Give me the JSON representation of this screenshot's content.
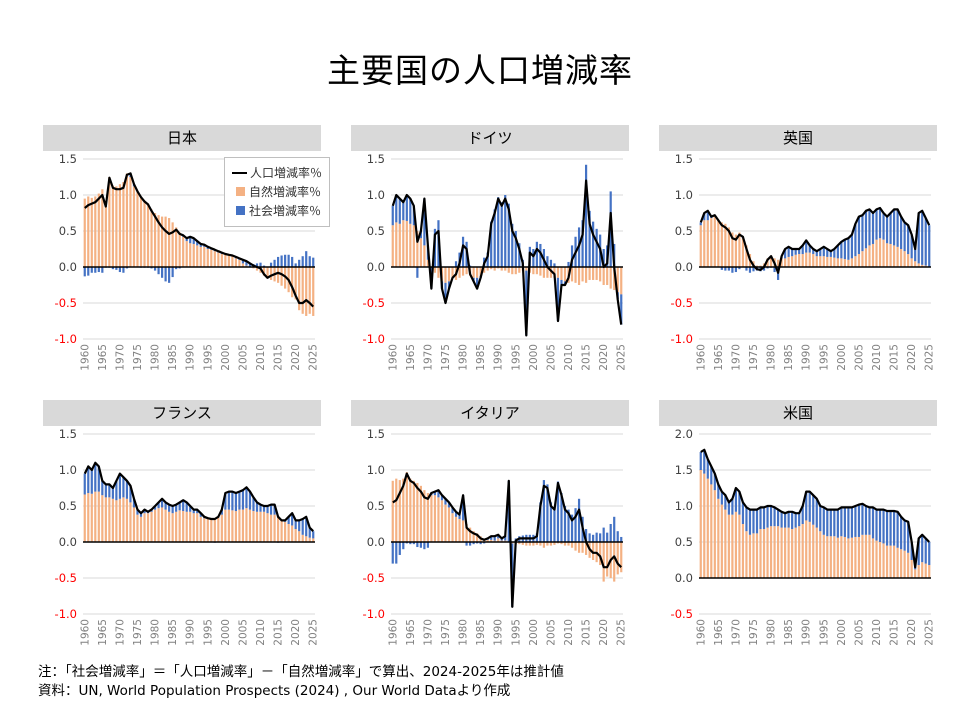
{
  "page": {
    "title": "主要国の人口増減率"
  },
  "legend": {
    "line_label": "人口増減率％",
    "line_prefix": "一",
    "natural_label": "自然増減率％",
    "social_label": "社会増減率％"
  },
  "notes": {
    "line1": "注：「社会増減率」＝「人口増減率」－「自然増減率」で算出、2024-2025年は推計値",
    "line2": "資料：UN, World Population Prospects (2024) , Our World Dataより作成"
  },
  "colors": {
    "natural_bar": "#F4B183",
    "social_bar": "#4472C4",
    "total_line": "#000000",
    "grid": "#D9D9D9",
    "zero_axis": "#000000",
    "header_bg": "#D9D9D9",
    "y_label": "#404040",
    "y_label_negative": "#FF0000",
    "x_label": "#808080"
  },
  "chart_data": [
    {
      "country": "日本",
      "type": "bar",
      "subtype": "stacked-bars-plus-line",
      "x_start": 1960,
      "x_end": 2025,
      "x_tick_step": 5,
      "x_ticks": [
        1960,
        1965,
        1970,
        1975,
        1980,
        1985,
        1990,
        1995,
        2000,
        2005,
        2010,
        2015,
        2020,
        2025
      ],
      "ylim": [
        -1.0,
        1.5
      ],
      "y_ticks": [
        1.5,
        1.0,
        0.5,
        0.0,
        -0.5,
        -1.0
      ],
      "social_definition": "人口増減率−自然増減率で算出",
      "natural": [
        0.95,
        0.98,
        0.96,
        0.98,
        1.02,
        1.08,
        0.85,
        1.25,
        1.13,
        1.12,
        1.15,
        1.18,
        1.3,
        1.25,
        1.12,
        1.05,
        0.98,
        0.92,
        0.88,
        0.8,
        0.75,
        0.72,
        0.7,
        0.7,
        0.68,
        0.62,
        0.55,
        0.48,
        0.42,
        0.36,
        0.33,
        0.32,
        0.3,
        0.28,
        0.28,
        0.25,
        0.24,
        0.22,
        0.2,
        0.18,
        0.18,
        0.16,
        0.15,
        0.12,
        0.1,
        0.05,
        0.02,
        0.0,
        -0.02,
        -0.05,
        -0.08,
        -0.12,
        -0.15,
        -0.18,
        -0.2,
        -0.22,
        -0.26,
        -0.3,
        -0.35,
        -0.42,
        -0.45,
        -0.6,
        -0.65,
        -0.68,
        -0.65,
        -0.68
      ],
      "total": [
        0.82,
        0.86,
        0.88,
        0.9,
        0.95,
        1.0,
        0.84,
        1.24,
        1.1,
        1.08,
        1.08,
        1.1,
        1.28,
        1.3,
        1.15,
        1.05,
        0.97,
        0.91,
        0.87,
        0.78,
        0.7,
        0.62,
        0.55,
        0.5,
        0.46,
        0.48,
        0.52,
        0.46,
        0.44,
        0.4,
        0.42,
        0.4,
        0.36,
        0.32,
        0.31,
        0.28,
        0.26,
        0.24,
        0.22,
        0.2,
        0.18,
        0.17,
        0.16,
        0.14,
        0.12,
        0.1,
        0.08,
        0.05,
        0.02,
        0.0,
        -0.02,
        -0.1,
        -0.15,
        -0.12,
        -0.1,
        -0.08,
        -0.1,
        -0.13,
        -0.18,
        -0.28,
        -0.4,
        -0.5,
        -0.5,
        -0.46,
        -0.5,
        -0.55
      ]
    },
    {
      "country": "ドイツ",
      "type": "bar",
      "subtype": "stacked-bars-plus-line",
      "x_start": 1960,
      "x_end": 2025,
      "x_tick_step": 5,
      "x_ticks": [
        1960,
        1965,
        1970,
        1975,
        1980,
        1985,
        1990,
        1995,
        2000,
        2005,
        2010,
        2015,
        2020,
        2025
      ],
      "ylim": [
        -1.0,
        1.5
      ],
      "y_ticks": [
        1.5,
        1.0,
        0.5,
        0.0,
        -0.5,
        -1.0
      ],
      "social_definition": "人口増減率−自然増減率で算出",
      "natural": [
        0.58,
        0.62,
        0.6,
        0.65,
        0.64,
        0.6,
        0.58,
        0.5,
        0.4,
        0.3,
        0.1,
        0.0,
        -0.08,
        -0.15,
        -0.2,
        -0.22,
        -0.2,
        -0.15,
        -0.18,
        -0.15,
        -0.12,
        -0.1,
        -0.12,
        -0.15,
        -0.15,
        -0.12,
        -0.08,
        -0.05,
        -0.03,
        -0.05,
        -0.02,
        -0.05,
        -0.05,
        -0.08,
        -0.1,
        -0.1,
        -0.08,
        -0.05,
        -0.05,
        -0.08,
        -0.1,
        -0.1,
        -0.12,
        -0.15,
        -0.15,
        -0.15,
        -0.15,
        -0.15,
        -0.18,
        -0.2,
        -0.22,
        -0.2,
        -0.22,
        -0.25,
        -0.2,
        -0.22,
        -0.18,
        -0.18,
        -0.18,
        -0.2,
        -0.25,
        -0.25,
        -0.3,
        -0.32,
        -0.35,
        -0.38
      ],
      "total": [
        0.85,
        1.0,
        0.95,
        0.9,
        1.0,
        0.95,
        0.85,
        0.35,
        0.5,
        0.95,
        0.3,
        -0.3,
        0.45,
        0.5,
        -0.3,
        -0.5,
        -0.3,
        -0.15,
        -0.1,
        0.05,
        0.3,
        0.25,
        -0.1,
        -0.2,
        -0.3,
        -0.15,
        0.05,
        0.15,
        0.6,
        0.75,
        0.95,
        0.85,
        0.95,
        0.8,
        0.5,
        0.4,
        0.25,
        0.05,
        -0.95,
        0.2,
        0.15,
        0.25,
        0.2,
        0.1,
        0.0,
        -0.05,
        -0.1,
        -0.75,
        -0.25,
        -0.25,
        -0.15,
        0.1,
        0.2,
        0.3,
        0.45,
        1.2,
        0.6,
        0.45,
        0.35,
        0.25,
        0.0,
        0.05,
        0.75,
        0.0,
        -0.45,
        -0.8
      ]
    },
    {
      "country": "英国",
      "type": "bar",
      "subtype": "stacked-bars-plus-line",
      "x_start": 1960,
      "x_end": 2025,
      "x_tick_step": 5,
      "x_ticks": [
        1960,
        1965,
        1970,
        1975,
        1980,
        1985,
        1990,
        1995,
        2000,
        2005,
        2010,
        2015,
        2020,
        2025
      ],
      "ylim": [
        -1.0,
        1.5
      ],
      "y_ticks": [
        1.5,
        1.0,
        0.5,
        0.0,
        -0.5,
        -1.0
      ],
      "social_definition": "人口増減率−自然増減率で算出",
      "natural": [
        0.58,
        0.65,
        0.65,
        0.68,
        0.7,
        0.65,
        0.62,
        0.6,
        0.55,
        0.48,
        0.45,
        0.48,
        0.4,
        0.3,
        0.18,
        0.08,
        0.02,
        0.02,
        0.05,
        0.12,
        0.16,
        0.12,
        0.1,
        0.12,
        0.12,
        0.14,
        0.15,
        0.17,
        0.18,
        0.18,
        0.2,
        0.2,
        0.18,
        0.15,
        0.15,
        0.15,
        0.14,
        0.14,
        0.13,
        0.12,
        0.12,
        0.11,
        0.1,
        0.12,
        0.15,
        0.18,
        0.22,
        0.26,
        0.3,
        0.32,
        0.38,
        0.4,
        0.38,
        0.33,
        0.32,
        0.3,
        0.28,
        0.25,
        0.22,
        0.18,
        0.12,
        0.08,
        0.05,
        0.03,
        0.02,
        0.0
      ],
      "total": [
        0.62,
        0.75,
        0.78,
        0.7,
        0.72,
        0.65,
        0.58,
        0.55,
        0.5,
        0.4,
        0.38,
        0.45,
        0.42,
        0.25,
        0.1,
        0.02,
        -0.03,
        -0.04,
        0.0,
        0.1,
        0.15,
        0.05,
        -0.08,
        0.15,
        0.25,
        0.28,
        0.25,
        0.25,
        0.25,
        0.3,
        0.37,
        0.3,
        0.25,
        0.22,
        0.25,
        0.28,
        0.25,
        0.22,
        0.25,
        0.3,
        0.35,
        0.38,
        0.4,
        0.45,
        0.6,
        0.7,
        0.72,
        0.78,
        0.8,
        0.75,
        0.8,
        0.82,
        0.75,
        0.7,
        0.75,
        0.8,
        0.8,
        0.7,
        0.62,
        0.58,
        0.45,
        0.25,
        0.75,
        0.78,
        0.68,
        0.58
      ]
    },
    {
      "country": "フランス",
      "type": "bar",
      "subtype": "stacked-bars-plus-line",
      "x_start": 1960,
      "x_end": 2025,
      "x_tick_step": 5,
      "x_ticks": [
        1960,
        1965,
        1970,
        1975,
        1980,
        1985,
        1990,
        1995,
        2000,
        2005,
        2010,
        2015,
        2020,
        2025
      ],
      "ylim": [
        -1.0,
        1.5
      ],
      "y_ticks": [
        1.5,
        1.0,
        0.5,
        0.0,
        -0.5,
        -1.0
      ],
      "social_definition": "人口増減率−自然増減率で算出",
      "natural": [
        0.66,
        0.68,
        0.67,
        0.7,
        0.7,
        0.65,
        0.62,
        0.62,
        0.6,
        0.58,
        0.6,
        0.62,
        0.6,
        0.55,
        0.48,
        0.38,
        0.35,
        0.4,
        0.4,
        0.42,
        0.45,
        0.47,
        0.48,
        0.45,
        0.42,
        0.4,
        0.42,
        0.44,
        0.43,
        0.42,
        0.42,
        0.4,
        0.4,
        0.35,
        0.33,
        0.32,
        0.32,
        0.33,
        0.34,
        0.38,
        0.45,
        0.45,
        0.44,
        0.43,
        0.45,
        0.45,
        0.47,
        0.45,
        0.43,
        0.42,
        0.42,
        0.42,
        0.4,
        0.38,
        0.38,
        0.36,
        0.3,
        0.28,
        0.25,
        0.23,
        0.18,
        0.15,
        0.1,
        0.08,
        0.06,
        0.05
      ],
      "total": [
        0.95,
        1.05,
        1.0,
        1.1,
        1.05,
        0.85,
        0.8,
        0.8,
        0.75,
        0.85,
        0.95,
        0.9,
        0.85,
        0.78,
        0.6,
        0.45,
        0.4,
        0.45,
        0.42,
        0.45,
        0.5,
        0.55,
        0.6,
        0.55,
        0.52,
        0.5,
        0.52,
        0.55,
        0.58,
        0.55,
        0.5,
        0.45,
        0.45,
        0.4,
        0.35,
        0.33,
        0.32,
        0.32,
        0.35,
        0.45,
        0.68,
        0.7,
        0.7,
        0.68,
        0.7,
        0.72,
        0.76,
        0.7,
        0.62,
        0.55,
        0.52,
        0.5,
        0.5,
        0.52,
        0.52,
        0.35,
        0.3,
        0.3,
        0.35,
        0.4,
        0.3,
        0.3,
        0.32,
        0.35,
        0.2,
        0.15
      ]
    },
    {
      "country": "イタリア",
      "type": "bar",
      "subtype": "stacked-bars-plus-line",
      "x_start": 1960,
      "x_end": 2025,
      "x_tick_step": 5,
      "x_ticks": [
        1960,
        1965,
        1970,
        1975,
        1980,
        1985,
        1990,
        1995,
        2000,
        2005,
        2010,
        2015,
        2020,
        2025
      ],
      "ylim": [
        -1.0,
        1.5
      ],
      "y_ticks": [
        1.5,
        1.0,
        0.5,
        0.0,
        -0.5,
        -1.0
      ],
      "social_definition": "人口増減率−自然増減率で算出",
      "natural": [
        0.85,
        0.88,
        0.86,
        0.88,
        0.97,
        0.88,
        0.85,
        0.82,
        0.78,
        0.72,
        0.68,
        0.65,
        0.65,
        0.62,
        0.58,
        0.52,
        0.48,
        0.4,
        0.35,
        0.32,
        0.3,
        0.25,
        0.2,
        0.15,
        0.12,
        0.08,
        0.05,
        0.03,
        0.03,
        0.02,
        0.05,
        0.02,
        0.02,
        0.0,
        -0.02,
        -0.03,
        -0.03,
        -0.04,
        -0.05,
        -0.05,
        -0.05,
        -0.04,
        -0.05,
        -0.08,
        -0.05,
        -0.05,
        -0.04,
        -0.02,
        -0.03,
        -0.05,
        -0.05,
        -0.08,
        -0.12,
        -0.15,
        -0.15,
        -0.18,
        -0.22,
        -0.25,
        -0.28,
        -0.32,
        -0.55,
        -0.48,
        -0.5,
        -0.55,
        -0.45,
        -0.42
      ],
      "total": [
        0.55,
        0.58,
        0.68,
        0.78,
        0.95,
        0.85,
        0.82,
        0.75,
        0.7,
        0.62,
        0.6,
        0.68,
        0.7,
        0.72,
        0.65,
        0.6,
        0.55,
        0.48,
        0.42,
        0.38,
        0.65,
        0.2,
        0.15,
        0.12,
        0.1,
        0.05,
        0.03,
        0.05,
        0.08,
        0.08,
        0.1,
        0.05,
        0.08,
        0.85,
        -0.9,
        0.02,
        0.05,
        0.05,
        0.05,
        0.05,
        0.05,
        0.08,
        0.5,
        0.78,
        0.75,
        0.5,
        0.45,
        0.82,
        0.65,
        0.45,
        0.4,
        0.3,
        0.35,
        0.45,
        0.2,
        0.0,
        -0.1,
        -0.15,
        -0.15,
        -0.2,
        -0.35,
        -0.35,
        -0.25,
        -0.2,
        -0.3,
        -0.35
      ]
    },
    {
      "country": "米国",
      "type": "bar",
      "subtype": "stacked-bars-plus-line",
      "x_start": 1960,
      "x_end": 2025,
      "x_tick_step": 5,
      "x_ticks": [
        1960,
        1965,
        1970,
        1975,
        1980,
        1985,
        1990,
        1995,
        2000,
        2005,
        2010,
        2015,
        2020,
        2025
      ],
      "ylim": [
        -0.5,
        2.0
      ],
      "y_ticks": [
        2.0,
        1.5,
        1.0,
        0.5,
        0.0,
        -0.5
      ],
      "social_definition": "人口増減率−自然増減率で算出",
      "natural": [
        1.5,
        1.45,
        1.38,
        1.3,
        1.22,
        1.1,
        1.02,
        0.95,
        0.88,
        0.88,
        0.92,
        0.88,
        0.75,
        0.65,
        0.6,
        0.62,
        0.62,
        0.68,
        0.68,
        0.7,
        0.72,
        0.72,
        0.72,
        0.7,
        0.7,
        0.7,
        0.68,
        0.7,
        0.72,
        0.75,
        0.8,
        0.78,
        0.74,
        0.7,
        0.65,
        0.6,
        0.58,
        0.58,
        0.58,
        0.56,
        0.58,
        0.57,
        0.55,
        0.56,
        0.57,
        0.57,
        0.6,
        0.6,
        0.6,
        0.55,
        0.52,
        0.5,
        0.48,
        0.45,
        0.45,
        0.45,
        0.42,
        0.4,
        0.38,
        0.35,
        0.25,
        0.12,
        0.18,
        0.22,
        0.2,
        0.18
      ],
      "total": [
        1.75,
        1.78,
        1.65,
        1.55,
        1.45,
        1.3,
        1.2,
        1.15,
        1.05,
        1.1,
        1.25,
        1.2,
        1.05,
        0.98,
        0.95,
        0.95,
        0.95,
        0.98,
        0.98,
        1.0,
        1.0,
        0.98,
        0.95,
        0.92,
        0.9,
        0.92,
        0.92,
        0.9,
        0.9,
        1.0,
        1.2,
        1.2,
        1.15,
        1.1,
        1.0,
        0.98,
        0.95,
        0.95,
        0.95,
        0.95,
        0.98,
        0.98,
        0.98,
        0.98,
        1.0,
        1.02,
        1.03,
        1.0,
        0.98,
        0.98,
        0.95,
        0.95,
        0.95,
        0.93,
        0.93,
        0.93,
        0.92,
        0.85,
        0.8,
        0.78,
        0.5,
        0.15,
        0.55,
        0.6,
        0.55,
        0.5
      ]
    }
  ]
}
